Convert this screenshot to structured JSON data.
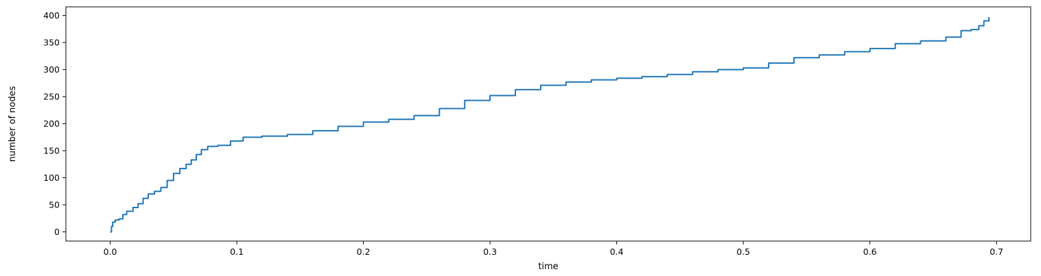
{
  "chart_data": {
    "type": "line",
    "title": "",
    "xlabel": "time",
    "ylabel": "number of nodes",
    "xlim": [
      -0.035,
      0.727
    ],
    "ylim": [
      -17,
      416
    ],
    "xticks": [
      0.0,
      0.1,
      0.2,
      0.3,
      0.4,
      0.5,
      0.6,
      0.7
    ],
    "xtick_labels": [
      "0.0",
      "0.1",
      "0.2",
      "0.3",
      "0.4",
      "0.5",
      "0.6",
      "0.7"
    ],
    "yticks": [
      0,
      50,
      100,
      150,
      200,
      250,
      300,
      350,
      400
    ],
    "ytick_labels": [
      "0",
      "50",
      "100",
      "150",
      "200",
      "250",
      "300",
      "350",
      "400"
    ],
    "grid": false,
    "series": [
      {
        "color": "#1f77b4",
        "points": [
          [
            0.0,
            0
          ],
          [
            0.001,
            10
          ],
          [
            0.002,
            18
          ],
          [
            0.004,
            22
          ],
          [
            0.007,
            24
          ],
          [
            0.01,
            32
          ],
          [
            0.013,
            38
          ],
          [
            0.018,
            45
          ],
          [
            0.022,
            52
          ],
          [
            0.026,
            62
          ],
          [
            0.03,
            70
          ],
          [
            0.035,
            75
          ],
          [
            0.04,
            82
          ],
          [
            0.045,
            95
          ],
          [
            0.05,
            108
          ],
          [
            0.055,
            117
          ],
          [
            0.06,
            125
          ],
          [
            0.064,
            133
          ],
          [
            0.068,
            143
          ],
          [
            0.072,
            152
          ],
          [
            0.077,
            158
          ],
          [
            0.085,
            160
          ],
          [
            0.095,
            168
          ],
          [
            0.105,
            175
          ],
          [
            0.12,
            177
          ],
          [
            0.14,
            180
          ],
          [
            0.16,
            187
          ],
          [
            0.18,
            195
          ],
          [
            0.2,
            203
          ],
          [
            0.22,
            208
          ],
          [
            0.24,
            215
          ],
          [
            0.26,
            228
          ],
          [
            0.28,
            243
          ],
          [
            0.3,
            252
          ],
          [
            0.32,
            263
          ],
          [
            0.34,
            271
          ],
          [
            0.36,
            277
          ],
          [
            0.38,
            281
          ],
          [
            0.4,
            284
          ],
          [
            0.42,
            287
          ],
          [
            0.44,
            291
          ],
          [
            0.46,
            296
          ],
          [
            0.48,
            300
          ],
          [
            0.5,
            303
          ],
          [
            0.52,
            312
          ],
          [
            0.54,
            322
          ],
          [
            0.56,
            327
          ],
          [
            0.58,
            333
          ],
          [
            0.6,
            339
          ],
          [
            0.62,
            348
          ],
          [
            0.64,
            353
          ],
          [
            0.66,
            360
          ],
          [
            0.672,
            372
          ],
          [
            0.68,
            374
          ],
          [
            0.686,
            381
          ],
          [
            0.69,
            390
          ],
          [
            0.694,
            397
          ]
        ]
      }
    ]
  }
}
